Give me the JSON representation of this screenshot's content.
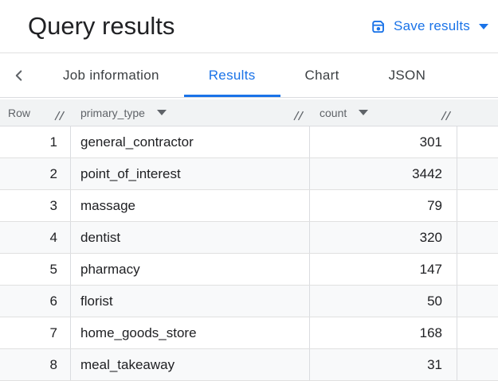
{
  "header": {
    "title": "Query results",
    "save_results_label": "Save results"
  },
  "tabs": [
    {
      "label": "Job information",
      "active": false
    },
    {
      "label": "Results",
      "active": true
    },
    {
      "label": "Chart",
      "active": false
    },
    {
      "label": "JSON",
      "active": false
    }
  ],
  "table": {
    "columns": [
      {
        "label": "Row",
        "sortable": false
      },
      {
        "label": "primary_type",
        "sortable": true
      },
      {
        "label": "count",
        "sortable": true
      }
    ],
    "rows": [
      {
        "row": "1",
        "primary_type": "general_contractor",
        "count": "301"
      },
      {
        "row": "2",
        "primary_type": "point_of_interest",
        "count": "3442"
      },
      {
        "row": "3",
        "primary_type": "massage",
        "count": "79"
      },
      {
        "row": "4",
        "primary_type": "dentist",
        "count": "320"
      },
      {
        "row": "5",
        "primary_type": "pharmacy",
        "count": "147"
      },
      {
        "row": "6",
        "primary_type": "florist",
        "count": "50"
      },
      {
        "row": "7",
        "primary_type": "home_goods_store",
        "count": "168"
      },
      {
        "row": "8",
        "primary_type": "meal_takeaway",
        "count": "31"
      }
    ]
  },
  "icons": {
    "save": "save-icon",
    "caret_down": "caret-down-icon",
    "chevron_left": "chevron-left-icon",
    "resize": "column-resize-handle-icon"
  },
  "colors": {
    "accent": "#1a73e8",
    "title": "#202124",
    "tab_inactive": "#3c4043",
    "muted": "#5f6368",
    "header_bg": "#f1f3f4",
    "zebra": "#f8f9fa",
    "border": "#dadce0"
  }
}
